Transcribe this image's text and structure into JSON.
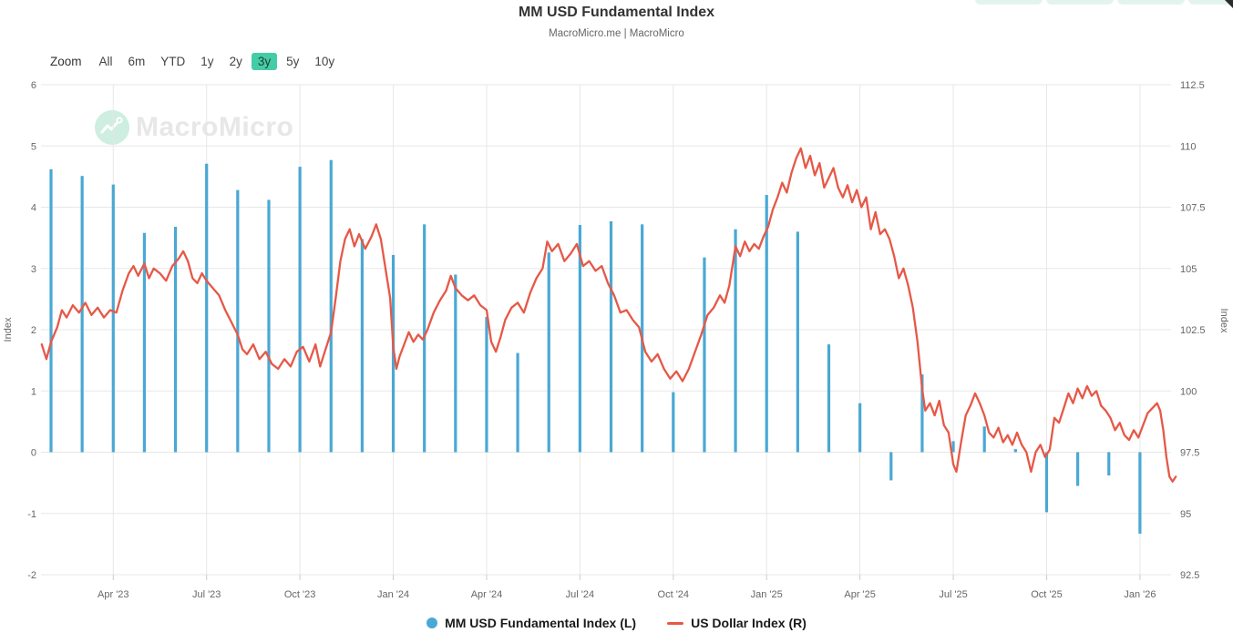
{
  "header": {
    "title": "MM USD Fundamental Index",
    "subtitle": "MacroMicro.me | MacroMicro"
  },
  "toolbar": {
    "zoom_label": "Zoom",
    "ranges": [
      "All",
      "6m",
      "YTD",
      "1y",
      "2y",
      "3y",
      "5y",
      "10y"
    ],
    "selected": "3y"
  },
  "watermark": {
    "text": "MacroMicro"
  },
  "legend": {
    "items": [
      {
        "label": "MM USD Fundamental Index (L)",
        "marker": "circle",
        "color": "#4aa8d4"
      },
      {
        "label": "US Dollar Index (R)",
        "marker": "line",
        "color": "#e65847"
      }
    ]
  },
  "colors": {
    "bar": "#4aa8d4",
    "line": "#e65847",
    "grid": "#e7e7e7",
    "tick": "#cccccc",
    "axis_text": "#666666",
    "selected_range_bg": "#43cda6",
    "watermark_mint": "#cdeee0"
  },
  "chart_data": {
    "type": "bar+line combo",
    "title": "MM USD Fundamental Index",
    "left_axis": {
      "title": "Index",
      "min": -2,
      "max": 6,
      "ticks": [
        6,
        5,
        4,
        3,
        2,
        1,
        0,
        -1,
        -2
      ]
    },
    "right_axis": {
      "title": "Index",
      "min": 92.5,
      "max": 112.5,
      "ticks": [
        112.5,
        110,
        107.5,
        105,
        102.5,
        100,
        97.5,
        95,
        92.5
      ]
    },
    "x_ticks": [
      {
        "label": "Apr '23",
        "month_index": 2
      },
      {
        "label": "Jul '23",
        "month_index": 5
      },
      {
        "label": "Oct '23",
        "month_index": 8
      },
      {
        "label": "Jan '24",
        "month_index": 11
      },
      {
        "label": "Apr '24",
        "month_index": 14
      },
      {
        "label": "Jul '24",
        "month_index": 17
      },
      {
        "label": "Oct '24",
        "month_index": 20
      },
      {
        "label": "Jan '25",
        "month_index": 23
      },
      {
        "label": "Apr '25",
        "month_index": 26
      },
      {
        "label": "Jul '25",
        "month_index": 29
      },
      {
        "label": "Oct '25",
        "month_index": 32
      },
      {
        "label": "Jan '26",
        "month_index": 35
      }
    ],
    "series": [
      {
        "name": "MM USD Fundamental Index (L)",
        "type": "bar",
        "axis": "left",
        "color": "#4aa8d4",
        "months": [
          "Feb '23",
          "Mar '23",
          "Apr '23",
          "May '23",
          "Jun '23",
          "Jul '23",
          "Aug '23",
          "Sep '23",
          "Oct '23",
          "Nov '23",
          "Dec '23",
          "Jan '24",
          "Feb '24",
          "Mar '24",
          "Apr '24",
          "May '24",
          "Jun '24",
          "Jul '24",
          "Aug '24",
          "Sep '24",
          "Oct '24",
          "Nov '24",
          "Dec '24",
          "Jan '25",
          "Feb '25",
          "Mar '25",
          "Apr '25",
          "May '25",
          "Jun '25",
          "Jul '25",
          "Aug '25",
          "Sep '25",
          "Oct '25",
          "Nov '25",
          "Dec '25",
          "Jan '26"
        ],
        "values": [
          4.62,
          4.51,
          4.37,
          3.58,
          3.68,
          4.71,
          4.28,
          4.12,
          4.66,
          4.77,
          3.48,
          3.22,
          3.72,
          2.9,
          2.21,
          1.62,
          3.26,
          3.71,
          3.77,
          3.72,
          0.98,
          3.18,
          3.64,
          4.2,
          3.6,
          1.76,
          0.8,
          -0.46,
          1.27,
          0.18,
          0.42,
          0.05,
          -0.98,
          -0.55,
          -0.38,
          -1.33
        ]
      },
      {
        "name": "US Dollar Index (R)",
        "type": "line",
        "axis": "right",
        "color": "#e65847",
        "points": [
          [
            -0.3,
            101.9
          ],
          [
            -0.15,
            101.3
          ],
          [
            0,
            102.0
          ],
          [
            0.2,
            102.6
          ],
          [
            0.35,
            103.3
          ],
          [
            0.5,
            103.0
          ],
          [
            0.7,
            103.5
          ],
          [
            0.9,
            103.2
          ],
          [
            1.1,
            103.6
          ],
          [
            1.3,
            103.1
          ],
          [
            1.5,
            103.4
          ],
          [
            1.7,
            103.0
          ],
          [
            1.9,
            103.3
          ],
          [
            2.1,
            103.2
          ],
          [
            2.3,
            104.1
          ],
          [
            2.5,
            104.8
          ],
          [
            2.65,
            105.1
          ],
          [
            2.8,
            104.7
          ],
          [
            3.0,
            105.2
          ],
          [
            3.15,
            104.6
          ],
          [
            3.3,
            105.0
          ],
          [
            3.5,
            104.8
          ],
          [
            3.7,
            104.5
          ],
          [
            3.9,
            105.1
          ],
          [
            4.1,
            105.4
          ],
          [
            4.25,
            105.7
          ],
          [
            4.4,
            105.3
          ],
          [
            4.55,
            104.6
          ],
          [
            4.7,
            104.4
          ],
          [
            4.85,
            104.8
          ],
          [
            5.0,
            104.5
          ],
          [
            5.2,
            104.2
          ],
          [
            5.4,
            103.9
          ],
          [
            5.6,
            103.3
          ],
          [
            5.8,
            102.8
          ],
          [
            6.0,
            102.3
          ],
          [
            6.15,
            101.7
          ],
          [
            6.3,
            101.5
          ],
          [
            6.5,
            101.9
          ],
          [
            6.7,
            101.3
          ],
          [
            6.9,
            101.6
          ],
          [
            7.1,
            101.1
          ],
          [
            7.3,
            100.9
          ],
          [
            7.5,
            101.3
          ],
          [
            7.7,
            101.0
          ],
          [
            7.9,
            101.6
          ],
          [
            8.1,
            101.8
          ],
          [
            8.3,
            101.2
          ],
          [
            8.5,
            101.9
          ],
          [
            8.65,
            101.0
          ],
          [
            8.8,
            101.6
          ],
          [
            9.0,
            102.4
          ],
          [
            9.15,
            103.8
          ],
          [
            9.3,
            105.3
          ],
          [
            9.45,
            106.2
          ],
          [
            9.6,
            106.6
          ],
          [
            9.75,
            105.9
          ],
          [
            9.9,
            106.4
          ],
          [
            10.1,
            105.8
          ],
          [
            10.3,
            106.3
          ],
          [
            10.45,
            106.8
          ],
          [
            10.6,
            106.2
          ],
          [
            10.75,
            105.0
          ],
          [
            10.9,
            103.8
          ],
          [
            11.0,
            101.8
          ],
          [
            11.1,
            100.9
          ],
          [
            11.2,
            101.4
          ],
          [
            11.35,
            101.9
          ],
          [
            11.5,
            102.4
          ],
          [
            11.65,
            102.0
          ],
          [
            11.8,
            102.3
          ],
          [
            11.95,
            102.1
          ],
          [
            12.1,
            102.5
          ],
          [
            12.3,
            103.2
          ],
          [
            12.5,
            103.7
          ],
          [
            12.7,
            104.1
          ],
          [
            12.85,
            104.7
          ],
          [
            13.0,
            104.2
          ],
          [
            13.2,
            103.9
          ],
          [
            13.4,
            103.7
          ],
          [
            13.6,
            103.9
          ],
          [
            13.8,
            103.5
          ],
          [
            14.0,
            103.3
          ],
          [
            14.15,
            102.0
          ],
          [
            14.3,
            101.6
          ],
          [
            14.45,
            102.2
          ],
          [
            14.6,
            102.9
          ],
          [
            14.8,
            103.4
          ],
          [
            15.0,
            103.6
          ],
          [
            15.2,
            103.2
          ],
          [
            15.4,
            104.0
          ],
          [
            15.6,
            104.6
          ],
          [
            15.8,
            105.0
          ],
          [
            15.95,
            106.1
          ],
          [
            16.1,
            105.7
          ],
          [
            16.3,
            106.0
          ],
          [
            16.5,
            105.3
          ],
          [
            16.7,
            105.6
          ],
          [
            16.9,
            106.0
          ],
          [
            17.1,
            105.1
          ],
          [
            17.3,
            105.3
          ],
          [
            17.5,
            104.9
          ],
          [
            17.7,
            105.1
          ],
          [
            17.9,
            104.4
          ],
          [
            18.1,
            103.9
          ],
          [
            18.3,
            103.2
          ],
          [
            18.5,
            103.3
          ],
          [
            18.7,
            102.9
          ],
          [
            18.9,
            102.6
          ],
          [
            19.1,
            101.6
          ],
          [
            19.3,
            101.2
          ],
          [
            19.5,
            101.5
          ],
          [
            19.7,
            100.9
          ],
          [
            19.9,
            100.5
          ],
          [
            20.1,
            100.8
          ],
          [
            20.3,
            100.4
          ],
          [
            20.5,
            100.9
          ],
          [
            20.7,
            101.6
          ],
          [
            20.9,
            102.3
          ],
          [
            21.1,
            103.1
          ],
          [
            21.3,
            103.4
          ],
          [
            21.5,
            103.9
          ],
          [
            21.65,
            103.6
          ],
          [
            21.8,
            104.3
          ],
          [
            22.0,
            105.9
          ],
          [
            22.15,
            105.5
          ],
          [
            22.3,
            106.1
          ],
          [
            22.45,
            105.7
          ],
          [
            22.6,
            106.0
          ],
          [
            22.75,
            105.8
          ],
          [
            22.9,
            106.3
          ],
          [
            23.05,
            106.7
          ],
          [
            23.2,
            107.4
          ],
          [
            23.35,
            107.9
          ],
          [
            23.5,
            108.5
          ],
          [
            23.65,
            108.1
          ],
          [
            23.8,
            108.9
          ],
          [
            23.95,
            109.5
          ],
          [
            24.1,
            109.9
          ],
          [
            24.25,
            109.1
          ],
          [
            24.4,
            109.6
          ],
          [
            24.55,
            108.8
          ],
          [
            24.7,
            109.3
          ],
          [
            24.85,
            108.3
          ],
          [
            25.0,
            108.7
          ],
          [
            25.15,
            109.1
          ],
          [
            25.3,
            108.3
          ],
          [
            25.45,
            107.9
          ],
          [
            25.6,
            108.4
          ],
          [
            25.75,
            107.7
          ],
          [
            25.9,
            108.2
          ],
          [
            26.05,
            107.5
          ],
          [
            26.2,
            107.9
          ],
          [
            26.35,
            106.6
          ],
          [
            26.5,
            107.3
          ],
          [
            26.65,
            106.4
          ],
          [
            26.8,
            106.6
          ],
          [
            26.95,
            106.2
          ],
          [
            27.1,
            105.5
          ],
          [
            27.25,
            104.6
          ],
          [
            27.4,
            105.0
          ],
          [
            27.55,
            104.3
          ],
          [
            27.7,
            103.4
          ],
          [
            27.85,
            102.0
          ],
          [
            28.0,
            100.1
          ],
          [
            28.1,
            99.2
          ],
          [
            28.25,
            99.5
          ],
          [
            28.4,
            99.0
          ],
          [
            28.55,
            99.6
          ],
          [
            28.7,
            98.6
          ],
          [
            28.85,
            98.3
          ],
          [
            29.0,
            97.0
          ],
          [
            29.1,
            96.7
          ],
          [
            29.25,
            97.9
          ],
          [
            29.4,
            99.0
          ],
          [
            29.55,
            99.4
          ],
          [
            29.7,
            99.9
          ],
          [
            29.85,
            99.5
          ],
          [
            30.0,
            99.0
          ],
          [
            30.15,
            98.3
          ],
          [
            30.3,
            98.1
          ],
          [
            30.45,
            98.5
          ],
          [
            30.6,
            97.9
          ],
          [
            30.75,
            98.2
          ],
          [
            30.9,
            97.8
          ],
          [
            31.05,
            98.3
          ],
          [
            31.2,
            97.8
          ],
          [
            31.35,
            97.5
          ],
          [
            31.5,
            96.7
          ],
          [
            31.65,
            97.5
          ],
          [
            31.8,
            97.8
          ],
          [
            31.95,
            97.3
          ],
          [
            32.1,
            97.6
          ],
          [
            32.25,
            98.9
          ],
          [
            32.4,
            98.7
          ],
          [
            32.55,
            99.3
          ],
          [
            32.7,
            99.9
          ],
          [
            32.85,
            99.5
          ],
          [
            33.0,
            100.1
          ],
          [
            33.15,
            99.7
          ],
          [
            33.3,
            100.2
          ],
          [
            33.45,
            99.8
          ],
          [
            33.6,
            100.0
          ],
          [
            33.75,
            99.4
          ],
          [
            33.9,
            99.2
          ],
          [
            34.05,
            98.9
          ],
          [
            34.2,
            98.4
          ],
          [
            34.35,
            98.7
          ],
          [
            34.5,
            98.2
          ],
          [
            34.65,
            98.0
          ],
          [
            34.8,
            98.4
          ],
          [
            34.95,
            98.1
          ],
          [
            35.1,
            98.6
          ],
          [
            35.25,
            99.1
          ],
          [
            35.4,
            99.3
          ],
          [
            35.55,
            99.5
          ],
          [
            35.65,
            99.2
          ],
          [
            35.75,
            98.4
          ],
          [
            35.85,
            97.3
          ],
          [
            35.95,
            96.5
          ],
          [
            36.05,
            96.3
          ],
          [
            36.15,
            96.5
          ]
        ]
      }
    ]
  }
}
